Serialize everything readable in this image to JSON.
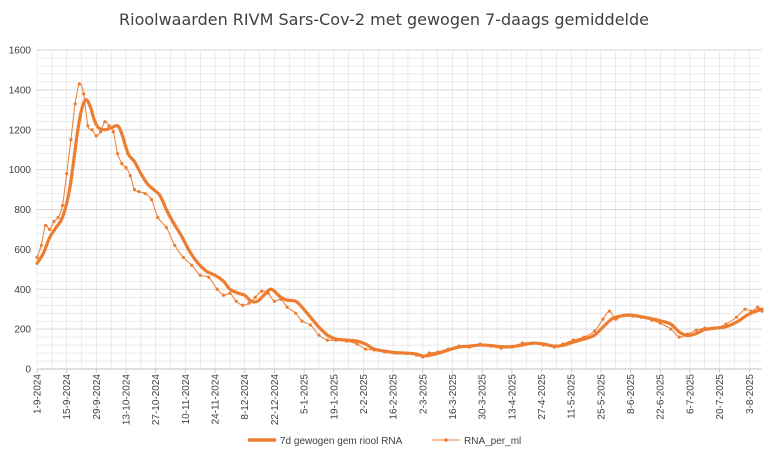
{
  "chart_data": {
    "type": "line",
    "title": "Rioolwaarden RIVM Sars-Cov-2 met gewogen 7-daags gemiddelde",
    "xlabel": "",
    "ylabel": "",
    "x_start": "2024-09-01",
    "x_end": "2025-08-09",
    "ylim": [
      0,
      1600
    ],
    "y_ticks": [
      "0",
      "200",
      "400",
      "600",
      "800",
      "1000",
      "1200",
      "1400",
      "1600"
    ],
    "x_tick_labels": [
      "1-9-2024",
      "15-9-2024",
      "29-9-2024",
      "13-10-2024",
      "27-10-2024",
      "10-11-2024",
      "24-11-2024",
      "8-12-2024",
      "22-12-2024",
      "5-1-2025",
      "19-1-2025",
      "2-2-2025",
      "16-2-2025",
      "2-3-2025",
      "16-3-2025",
      "30-3-2025",
      "13-4-2025",
      "27-4-2025",
      "11-5-2025",
      "25-5-2025",
      "8-6-2025",
      "22-6-2025",
      "6-7-2025",
      "20-7-2025",
      "3-8-2025"
    ],
    "grid": true,
    "legend_position": "bottom",
    "colors": {
      "series": "#ED7D31",
      "grid": "#D9D9D9",
      "axis": "#BFBFBF",
      "text": "#404040"
    },
    "series": [
      {
        "name": "7d gewogen gem riool RNA",
        "style": "thick-line",
        "points": [
          [
            "2024-09-01",
            530
          ],
          [
            "2024-09-04",
            580
          ],
          [
            "2024-09-07",
            660
          ],
          [
            "2024-09-10",
            710
          ],
          [
            "2024-09-13",
            760
          ],
          [
            "2024-09-16",
            880
          ],
          [
            "2024-09-18",
            1020
          ],
          [
            "2024-09-20",
            1180
          ],
          [
            "2024-09-22",
            1300
          ],
          [
            "2024-09-24",
            1350
          ],
          [
            "2024-09-26",
            1320
          ],
          [
            "2024-09-28",
            1250
          ],
          [
            "2024-09-30",
            1210
          ],
          [
            "2024-10-03",
            1200
          ],
          [
            "2024-10-06",
            1210
          ],
          [
            "2024-10-09",
            1220
          ],
          [
            "2024-10-11",
            1180
          ],
          [
            "2024-10-14",
            1080
          ],
          [
            "2024-10-17",
            1040
          ],
          [
            "2024-10-20",
            980
          ],
          [
            "2024-10-23",
            930
          ],
          [
            "2024-10-26",
            900
          ],
          [
            "2024-10-29",
            870
          ],
          [
            "2024-11-01",
            800
          ],
          [
            "2024-11-04",
            740
          ],
          [
            "2024-11-08",
            670
          ],
          [
            "2024-11-12",
            590
          ],
          [
            "2024-11-16",
            530
          ],
          [
            "2024-11-20",
            490
          ],
          [
            "2024-11-24",
            470
          ],
          [
            "2024-11-28",
            440
          ],
          [
            "2024-12-01",
            400
          ],
          [
            "2024-12-05",
            380
          ],
          [
            "2024-12-08",
            370
          ],
          [
            "2024-12-11",
            340
          ],
          [
            "2024-12-14",
            340
          ],
          [
            "2024-12-17",
            370
          ],
          [
            "2024-12-20",
            400
          ],
          [
            "2024-12-22",
            390
          ],
          [
            "2024-12-25",
            360
          ],
          [
            "2024-12-28",
            345
          ],
          [
            "2025-01-01",
            340
          ],
          [
            "2025-01-04",
            310
          ],
          [
            "2025-01-08",
            260
          ],
          [
            "2025-01-12",
            210
          ],
          [
            "2025-01-16",
            170
          ],
          [
            "2025-01-20",
            150
          ],
          [
            "2025-01-25",
            145
          ],
          [
            "2025-01-30",
            140
          ],
          [
            "2025-02-03",
            125
          ],
          [
            "2025-02-07",
            100
          ],
          [
            "2025-02-12",
            90
          ],
          [
            "2025-02-17",
            82
          ],
          [
            "2025-02-22",
            80
          ],
          [
            "2025-02-27",
            75
          ],
          [
            "2025-03-02",
            65
          ],
          [
            "2025-03-05",
            68
          ],
          [
            "2025-03-09",
            78
          ],
          [
            "2025-03-14",
            95
          ],
          [
            "2025-03-19",
            110
          ],
          [
            "2025-03-24",
            115
          ],
          [
            "2025-03-29",
            120
          ],
          [
            "2025-04-03",
            118
          ],
          [
            "2025-04-08",
            112
          ],
          [
            "2025-04-13",
            112
          ],
          [
            "2025-04-18",
            120
          ],
          [
            "2025-04-23",
            130
          ],
          [
            "2025-04-28",
            125
          ],
          [
            "2025-05-03",
            115
          ],
          [
            "2025-05-07",
            118
          ],
          [
            "2025-05-12",
            135
          ],
          [
            "2025-05-17",
            150
          ],
          [
            "2025-05-22",
            170
          ],
          [
            "2025-05-26",
            210
          ],
          [
            "2025-05-30",
            250
          ],
          [
            "2025-06-03",
            265
          ],
          [
            "2025-06-08",
            270
          ],
          [
            "2025-06-13",
            262
          ],
          [
            "2025-06-18",
            252
          ],
          [
            "2025-06-22",
            242
          ],
          [
            "2025-06-27",
            225
          ],
          [
            "2025-07-01",
            185
          ],
          [
            "2025-07-05",
            168
          ],
          [
            "2025-07-09",
            178
          ],
          [
            "2025-07-13",
            198
          ],
          [
            "2025-07-18",
            205
          ],
          [
            "2025-07-23",
            212
          ],
          [
            "2025-07-28",
            235
          ],
          [
            "2025-08-02",
            270
          ],
          [
            "2025-08-05",
            285
          ],
          [
            "2025-08-09",
            300
          ]
        ]
      },
      {
        "name": "RNA_per_ml",
        "style": "thin-line-markers",
        "points": [
          [
            "2024-09-01",
            560
          ],
          [
            "2024-09-03",
            620
          ],
          [
            "2024-09-05",
            720
          ],
          [
            "2024-09-07",
            700
          ],
          [
            "2024-09-09",
            740
          ],
          [
            "2024-09-11",
            760
          ],
          [
            "2024-09-13",
            820
          ],
          [
            "2024-09-15",
            980
          ],
          [
            "2024-09-17",
            1150
          ],
          [
            "2024-09-19",
            1330
          ],
          [
            "2024-09-21",
            1430
          ],
          [
            "2024-09-23",
            1380
          ],
          [
            "2024-09-25",
            1220
          ],
          [
            "2024-09-27",
            1200
          ],
          [
            "2024-09-29",
            1170
          ],
          [
            "2024-10-01",
            1190
          ],
          [
            "2024-10-03",
            1240
          ],
          [
            "2024-10-05",
            1220
          ],
          [
            "2024-10-07",
            1190
          ],
          [
            "2024-10-09",
            1080
          ],
          [
            "2024-10-11",
            1030
          ],
          [
            "2024-10-13",
            1010
          ],
          [
            "2024-10-15",
            970
          ],
          [
            "2024-10-17",
            900
          ],
          [
            "2024-10-19",
            890
          ],
          [
            "2024-10-22",
            880
          ],
          [
            "2024-10-25",
            850
          ],
          [
            "2024-10-28",
            760
          ],
          [
            "2024-11-01",
            710
          ],
          [
            "2024-11-05",
            620
          ],
          [
            "2024-11-09",
            560
          ],
          [
            "2024-11-13",
            520
          ],
          [
            "2024-11-17",
            470
          ],
          [
            "2024-11-21",
            460
          ],
          [
            "2024-11-25",
            400
          ],
          [
            "2024-11-28",
            370
          ],
          [
            "2024-12-01",
            380
          ],
          [
            "2024-12-04",
            340
          ],
          [
            "2024-12-07",
            320
          ],
          [
            "2024-12-10",
            330
          ],
          [
            "2024-12-13",
            360
          ],
          [
            "2024-12-16",
            390
          ],
          [
            "2024-12-19",
            380
          ],
          [
            "2024-12-22",
            340
          ],
          [
            "2024-12-25",
            350
          ],
          [
            "2024-12-28",
            310
          ],
          [
            "2025-01-01",
            280
          ],
          [
            "2025-01-04",
            240
          ],
          [
            "2025-01-08",
            220
          ],
          [
            "2025-01-12",
            170
          ],
          [
            "2025-01-16",
            145
          ],
          [
            "2025-01-20",
            145
          ],
          [
            "2025-01-25",
            140
          ],
          [
            "2025-01-30",
            125
          ],
          [
            "2025-02-03",
            100
          ],
          [
            "2025-02-07",
            95
          ],
          [
            "2025-02-12",
            85
          ],
          [
            "2025-02-17",
            80
          ],
          [
            "2025-02-22",
            78
          ],
          [
            "2025-02-27",
            70
          ],
          [
            "2025-03-02",
            60
          ],
          [
            "2025-03-05",
            80
          ],
          [
            "2025-03-09",
            85
          ],
          [
            "2025-03-14",
            100
          ],
          [
            "2025-03-19",
            115
          ],
          [
            "2025-03-24",
            110
          ],
          [
            "2025-03-29",
            125
          ],
          [
            "2025-04-03",
            115
          ],
          [
            "2025-04-08",
            105
          ],
          [
            "2025-04-13",
            110
          ],
          [
            "2025-04-18",
            130
          ],
          [
            "2025-04-23",
            130
          ],
          [
            "2025-04-28",
            120
          ],
          [
            "2025-05-03",
            110
          ],
          [
            "2025-05-07",
            125
          ],
          [
            "2025-05-12",
            145
          ],
          [
            "2025-05-17",
            160
          ],
          [
            "2025-05-22",
            190
          ],
          [
            "2025-05-26",
            250
          ],
          [
            "2025-05-29",
            290
          ],
          [
            "2025-06-01",
            250
          ],
          [
            "2025-06-05",
            270
          ],
          [
            "2025-06-09",
            265
          ],
          [
            "2025-06-13",
            260
          ],
          [
            "2025-06-18",
            245
          ],
          [
            "2025-06-22",
            230
          ],
          [
            "2025-06-27",
            200
          ],
          [
            "2025-07-01",
            160
          ],
          [
            "2025-07-05",
            175
          ],
          [
            "2025-07-09",
            195
          ],
          [
            "2025-07-13",
            205
          ],
          [
            "2025-07-18",
            205
          ],
          [
            "2025-07-23",
            225
          ],
          [
            "2025-07-28",
            260
          ],
          [
            "2025-08-01",
            300
          ],
          [
            "2025-08-04",
            290
          ],
          [
            "2025-08-07",
            310
          ],
          [
            "2025-08-09",
            290
          ]
        ]
      }
    ]
  }
}
